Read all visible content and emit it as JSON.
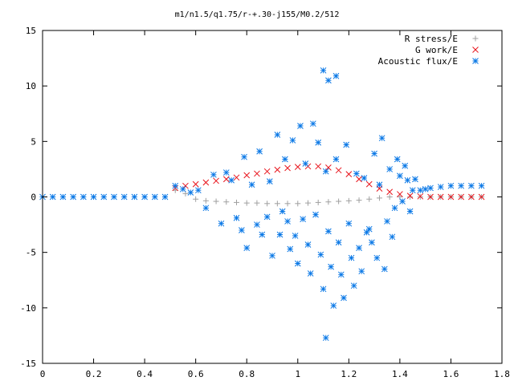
{
  "chart_data": {
    "type": "scatter",
    "title": "m1/n1.5/q1.75/r-+.30-j155/M0.2/512",
    "xlabel": "",
    "ylabel": "",
    "xlim": [
      0,
      1.8
    ],
    "ylim": [
      -15,
      15
    ],
    "xticks": [
      "0",
      "0.2",
      "0.4",
      "0.6",
      "0.8",
      "1",
      "1.2",
      "1.4",
      "1.6",
      "1.8"
    ],
    "yticks": [
      "15",
      "10",
      "5",
      "0",
      "-5",
      "-10",
      "-15"
    ],
    "grid": false,
    "legend_position": "top-right",
    "series": [
      {
        "name": "R stress/E",
        "marker": "plus",
        "color": "#a0a0a0",
        "x": [
          0.52,
          0.56,
          0.6,
          0.64,
          0.68,
          0.72,
          0.76,
          0.8,
          0.84,
          0.88,
          0.92,
          0.96,
          1.0,
          1.04,
          1.08,
          1.12,
          1.16,
          1.2,
          1.24,
          1.28,
          1.32,
          1.36,
          1.4,
          1.44,
          1.48,
          1.52,
          1.56,
          1.6,
          1.64,
          1.68,
          1.72
        ],
        "y": [
          0.6,
          0.3,
          -0.2,
          -0.35,
          -0.4,
          -0.45,
          -0.5,
          -0.55,
          -0.55,
          -0.6,
          -0.6,
          -0.6,
          -0.6,
          -0.55,
          -0.5,
          -0.45,
          -0.4,
          -0.35,
          -0.3,
          -0.2,
          -0.1,
          0.0,
          0.0,
          0.0,
          0.0,
          0.0,
          0.0,
          0.0,
          0.0,
          0.0,
          0.0
        ]
      },
      {
        "name": "G work/E",
        "marker": "cross",
        "color": "#e8141c",
        "x": [
          0.52,
          0.56,
          0.6,
          0.64,
          0.68,
          0.72,
          0.76,
          0.8,
          0.84,
          0.88,
          0.92,
          0.96,
          1.0,
          1.04,
          1.08,
          1.12,
          1.16,
          1.2,
          1.24,
          1.28,
          1.32,
          1.36,
          1.4,
          1.44,
          1.48,
          1.52,
          1.56,
          1.6,
          1.64,
          1.68,
          1.72
        ],
        "y": [
          0.8,
          1.0,
          1.15,
          1.3,
          1.45,
          1.6,
          1.75,
          1.95,
          2.1,
          2.3,
          2.45,
          2.6,
          2.7,
          2.75,
          2.75,
          2.65,
          2.4,
          2.05,
          1.6,
          1.15,
          0.75,
          0.45,
          0.25,
          0.1,
          0.05,
          0.0,
          0.0,
          0.0,
          0.0,
          0.0,
          0.0
        ]
      },
      {
        "name": "Acoustic flux/E",
        "marker": "star",
        "color": "#0a78e6",
        "x": [
          0.0,
          0.04,
          0.08,
          0.12,
          0.16,
          0.2,
          0.24,
          0.28,
          0.32,
          0.36,
          0.4,
          0.44,
          0.48,
          0.52,
          0.55,
          0.58,
          0.61,
          0.64,
          0.67,
          0.7,
          0.72,
          0.74,
          0.76,
          0.78,
          0.79,
          0.8,
          0.82,
          0.84,
          0.85,
          0.86,
          0.88,
          0.89,
          0.9,
          0.92,
          0.93,
          0.94,
          0.95,
          0.96,
          0.97,
          0.98,
          0.99,
          1.0,
          1.01,
          1.02,
          1.03,
          1.04,
          1.05,
          1.06,
          1.07,
          1.08,
          1.09,
          1.1,
          1.11,
          1.12,
          1.13,
          1.14,
          1.15,
          1.16,
          1.17,
          1.18,
          1.19,
          1.2,
          1.21,
          1.22,
          1.23,
          1.24,
          1.25,
          1.26,
          1.27,
          1.28,
          1.29,
          1.3,
          1.31,
          1.32,
          1.33,
          1.34,
          1.35,
          1.36,
          1.37,
          1.38,
          1.39,
          1.4,
          1.41,
          1.42,
          1.43,
          1.44,
          1.45,
          1.46,
          1.48,
          1.5,
          1.52,
          1.56,
          1.6,
          1.64,
          1.68,
          1.72,
          1.1,
          1.12,
          1.15,
          1.11
        ],
        "y": [
          0,
          0,
          0,
          0,
          0,
          0,
          0,
          0,
          0,
          0,
          0,
          0,
          0,
          1.0,
          0.7,
          0.4,
          0.6,
          -1.0,
          2.0,
          -2.4,
          2.2,
          1.5,
          -1.9,
          -3.0,
          3.6,
          -4.6,
          1.1,
          -2.5,
          4.1,
          -3.4,
          -1.8,
          1.4,
          -5.3,
          5.6,
          -3.4,
          -1.3,
          3.4,
          -2.2,
          -4.7,
          5.1,
          -3.5,
          -6.0,
          6.4,
          -2.0,
          3.0,
          -4.3,
          -6.9,
          6.6,
          -1.6,
          4.9,
          -5.2,
          -8.3,
          2.3,
          -3.1,
          -6.3,
          -9.8,
          3.4,
          -4.1,
          -7.0,
          -9.1,
          4.7,
          -2.4,
          -5.5,
          -8.0,
          2.1,
          -4.6,
          -6.7,
          1.7,
          -3.2,
          -2.9,
          -4.1,
          3.9,
          -5.5,
          1.1,
          5.3,
          -6.5,
          -2.2,
          2.5,
          -3.6,
          -1.0,
          3.4,
          1.9,
          -0.4,
          2.8,
          1.5,
          -1.3,
          0.6,
          1.6,
          0.6,
          0.7,
          0.8,
          0.9,
          1.0,
          1.0,
          1.0,
          1.0,
          11.4,
          10.5,
          10.9,
          -12.7
        ]
      }
    ]
  }
}
